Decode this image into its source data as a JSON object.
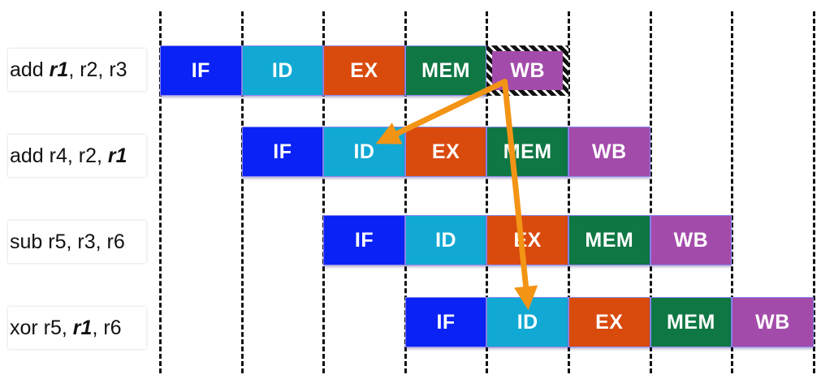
{
  "instructions": [
    {
      "parts": [
        {
          "t": "add ",
          "b": false
        },
        {
          "t": "r1",
          "b": true
        },
        {
          "t": ", r2, r3",
          "b": false
        }
      ]
    },
    {
      "parts": [
        {
          "t": "add r4, r2, ",
          "b": false
        },
        {
          "t": "r1",
          "b": true
        }
      ]
    },
    {
      "parts": [
        {
          "t": "sub r5, r3, r6",
          "b": false
        }
      ]
    },
    {
      "parts": [
        {
          "t": "xor r5, ",
          "b": false
        },
        {
          "t": "r1",
          "b": true
        },
        {
          "t": ", r6",
          "b": false
        }
      ]
    }
  ],
  "stages": [
    "IF",
    "ID",
    "EX",
    "MEM",
    "WB"
  ],
  "stage_colors": {
    "IF": "#0a22f5",
    "ID": "#11a9d3",
    "EX": "#d94a0d",
    "MEM": "#0f7744",
    "WB": "#a34bab"
  },
  "arrow_color": "#f39415",
  "highlighted_stage": {
    "instruction": 0,
    "stage": "WB",
    "style": "hatched-border"
  },
  "forwarding_arrows": [
    {
      "from": {
        "instruction": 0,
        "stage": "WB"
      },
      "to": {
        "instruction": 1,
        "stage": "ID"
      }
    },
    {
      "from": {
        "instruction": 0,
        "stage": "WB"
      },
      "to": {
        "instruction": 3,
        "stage": "ID"
      }
    }
  ],
  "dashed_gridlines": 9
}
